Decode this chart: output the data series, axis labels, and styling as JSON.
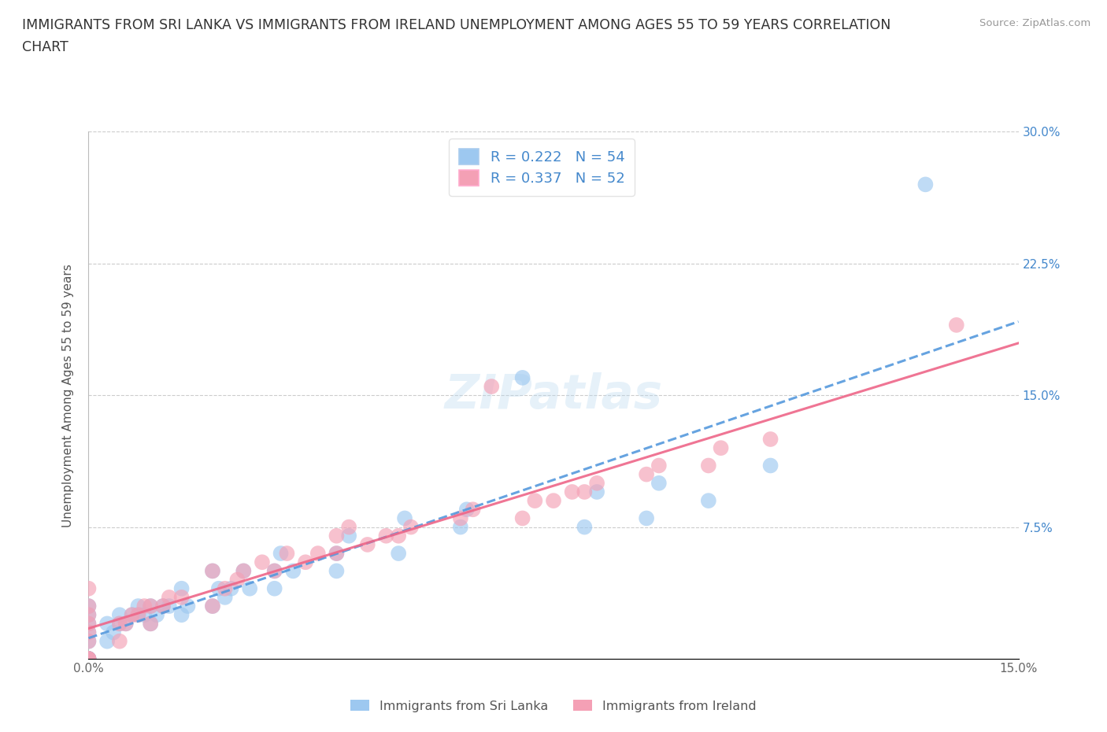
{
  "title_line1": "IMMIGRANTS FROM SRI LANKA VS IMMIGRANTS FROM IRELAND UNEMPLOYMENT AMONG AGES 55 TO 59 YEARS CORRELATION",
  "title_line2": "CHART",
  "source": "Source: ZipAtlas.com",
  "ylabel": "Unemployment Among Ages 55 to 59 years",
  "xlim": [
    0.0,
    0.15
  ],
  "ylim": [
    0.0,
    0.3
  ],
  "xticks": [
    0.0,
    0.05,
    0.1,
    0.15
  ],
  "xticklabels": [
    "0.0%",
    "",
    "",
    "15.0%"
  ],
  "yticks": [
    0.0,
    0.075,
    0.15,
    0.225,
    0.3
  ],
  "yticklabels_left": [
    "",
    "",
    "",
    "",
    ""
  ],
  "yticklabels_right": [
    "",
    "7.5%",
    "15.0%",
    "22.5%",
    "30.0%"
  ],
  "watermark": "ZIPatlas",
  "sri_lanka_color": "#9dc8f0",
  "ireland_color": "#f4a0b5",
  "sri_lanka_line_color": "#5599dd",
  "ireland_line_color": "#ee6688",
  "sri_lanka_R": 0.222,
  "sri_lanka_N": 54,
  "ireland_R": 0.337,
  "ireland_N": 52,
  "legend_label_sri": "Immigrants from Sri Lanka",
  "legend_label_ire": "Immigrants from Ireland",
  "sri_lanka_x": [
    0.0,
    0.0,
    0.0,
    0.0,
    0.0,
    0.0,
    0.0,
    0.0,
    0.0,
    0.0,
    0.003,
    0.003,
    0.004,
    0.005,
    0.005,
    0.006,
    0.007,
    0.008,
    0.008,
    0.009,
    0.01,
    0.01,
    0.011,
    0.012,
    0.013,
    0.015,
    0.015,
    0.016,
    0.02,
    0.02,
    0.021,
    0.022,
    0.023,
    0.025,
    0.026,
    0.03,
    0.03,
    0.031,
    0.033,
    0.04,
    0.04,
    0.042,
    0.05,
    0.051,
    0.06,
    0.061,
    0.07,
    0.08,
    0.082,
    0.09,
    0.092,
    0.1,
    0.11,
    0.135
  ],
  "sri_lanka_y": [
    0.0,
    0.0,
    0.0,
    0.0,
    0.0,
    0.01,
    0.015,
    0.02,
    0.025,
    0.03,
    0.01,
    0.02,
    0.015,
    0.02,
    0.025,
    0.02,
    0.025,
    0.025,
    0.03,
    0.025,
    0.02,
    0.03,
    0.025,
    0.03,
    0.03,
    0.025,
    0.04,
    0.03,
    0.03,
    0.05,
    0.04,
    0.035,
    0.04,
    0.05,
    0.04,
    0.04,
    0.05,
    0.06,
    0.05,
    0.05,
    0.06,
    0.07,
    0.06,
    0.08,
    0.075,
    0.085,
    0.16,
    0.075,
    0.095,
    0.08,
    0.1,
    0.09,
    0.11,
    0.27
  ],
  "ireland_x": [
    0.0,
    0.0,
    0.0,
    0.0,
    0.0,
    0.0,
    0.0,
    0.0,
    0.0,
    0.005,
    0.005,
    0.006,
    0.007,
    0.008,
    0.009,
    0.01,
    0.01,
    0.012,
    0.013,
    0.015,
    0.02,
    0.02,
    0.022,
    0.024,
    0.025,
    0.028,
    0.03,
    0.032,
    0.035,
    0.037,
    0.04,
    0.04,
    0.042,
    0.045,
    0.048,
    0.05,
    0.052,
    0.06,
    0.062,
    0.065,
    0.07,
    0.072,
    0.075,
    0.078,
    0.08,
    0.082,
    0.09,
    0.092,
    0.1,
    0.102,
    0.11,
    0.14
  ],
  "ireland_y": [
    0.0,
    0.0,
    0.0,
    0.01,
    0.015,
    0.02,
    0.025,
    0.03,
    0.04,
    0.01,
    0.02,
    0.02,
    0.025,
    0.025,
    0.03,
    0.02,
    0.03,
    0.03,
    0.035,
    0.035,
    0.03,
    0.05,
    0.04,
    0.045,
    0.05,
    0.055,
    0.05,
    0.06,
    0.055,
    0.06,
    0.06,
    0.07,
    0.075,
    0.065,
    0.07,
    0.07,
    0.075,
    0.08,
    0.085,
    0.155,
    0.08,
    0.09,
    0.09,
    0.095,
    0.095,
    0.1,
    0.105,
    0.11,
    0.11,
    0.12,
    0.125,
    0.19
  ]
}
